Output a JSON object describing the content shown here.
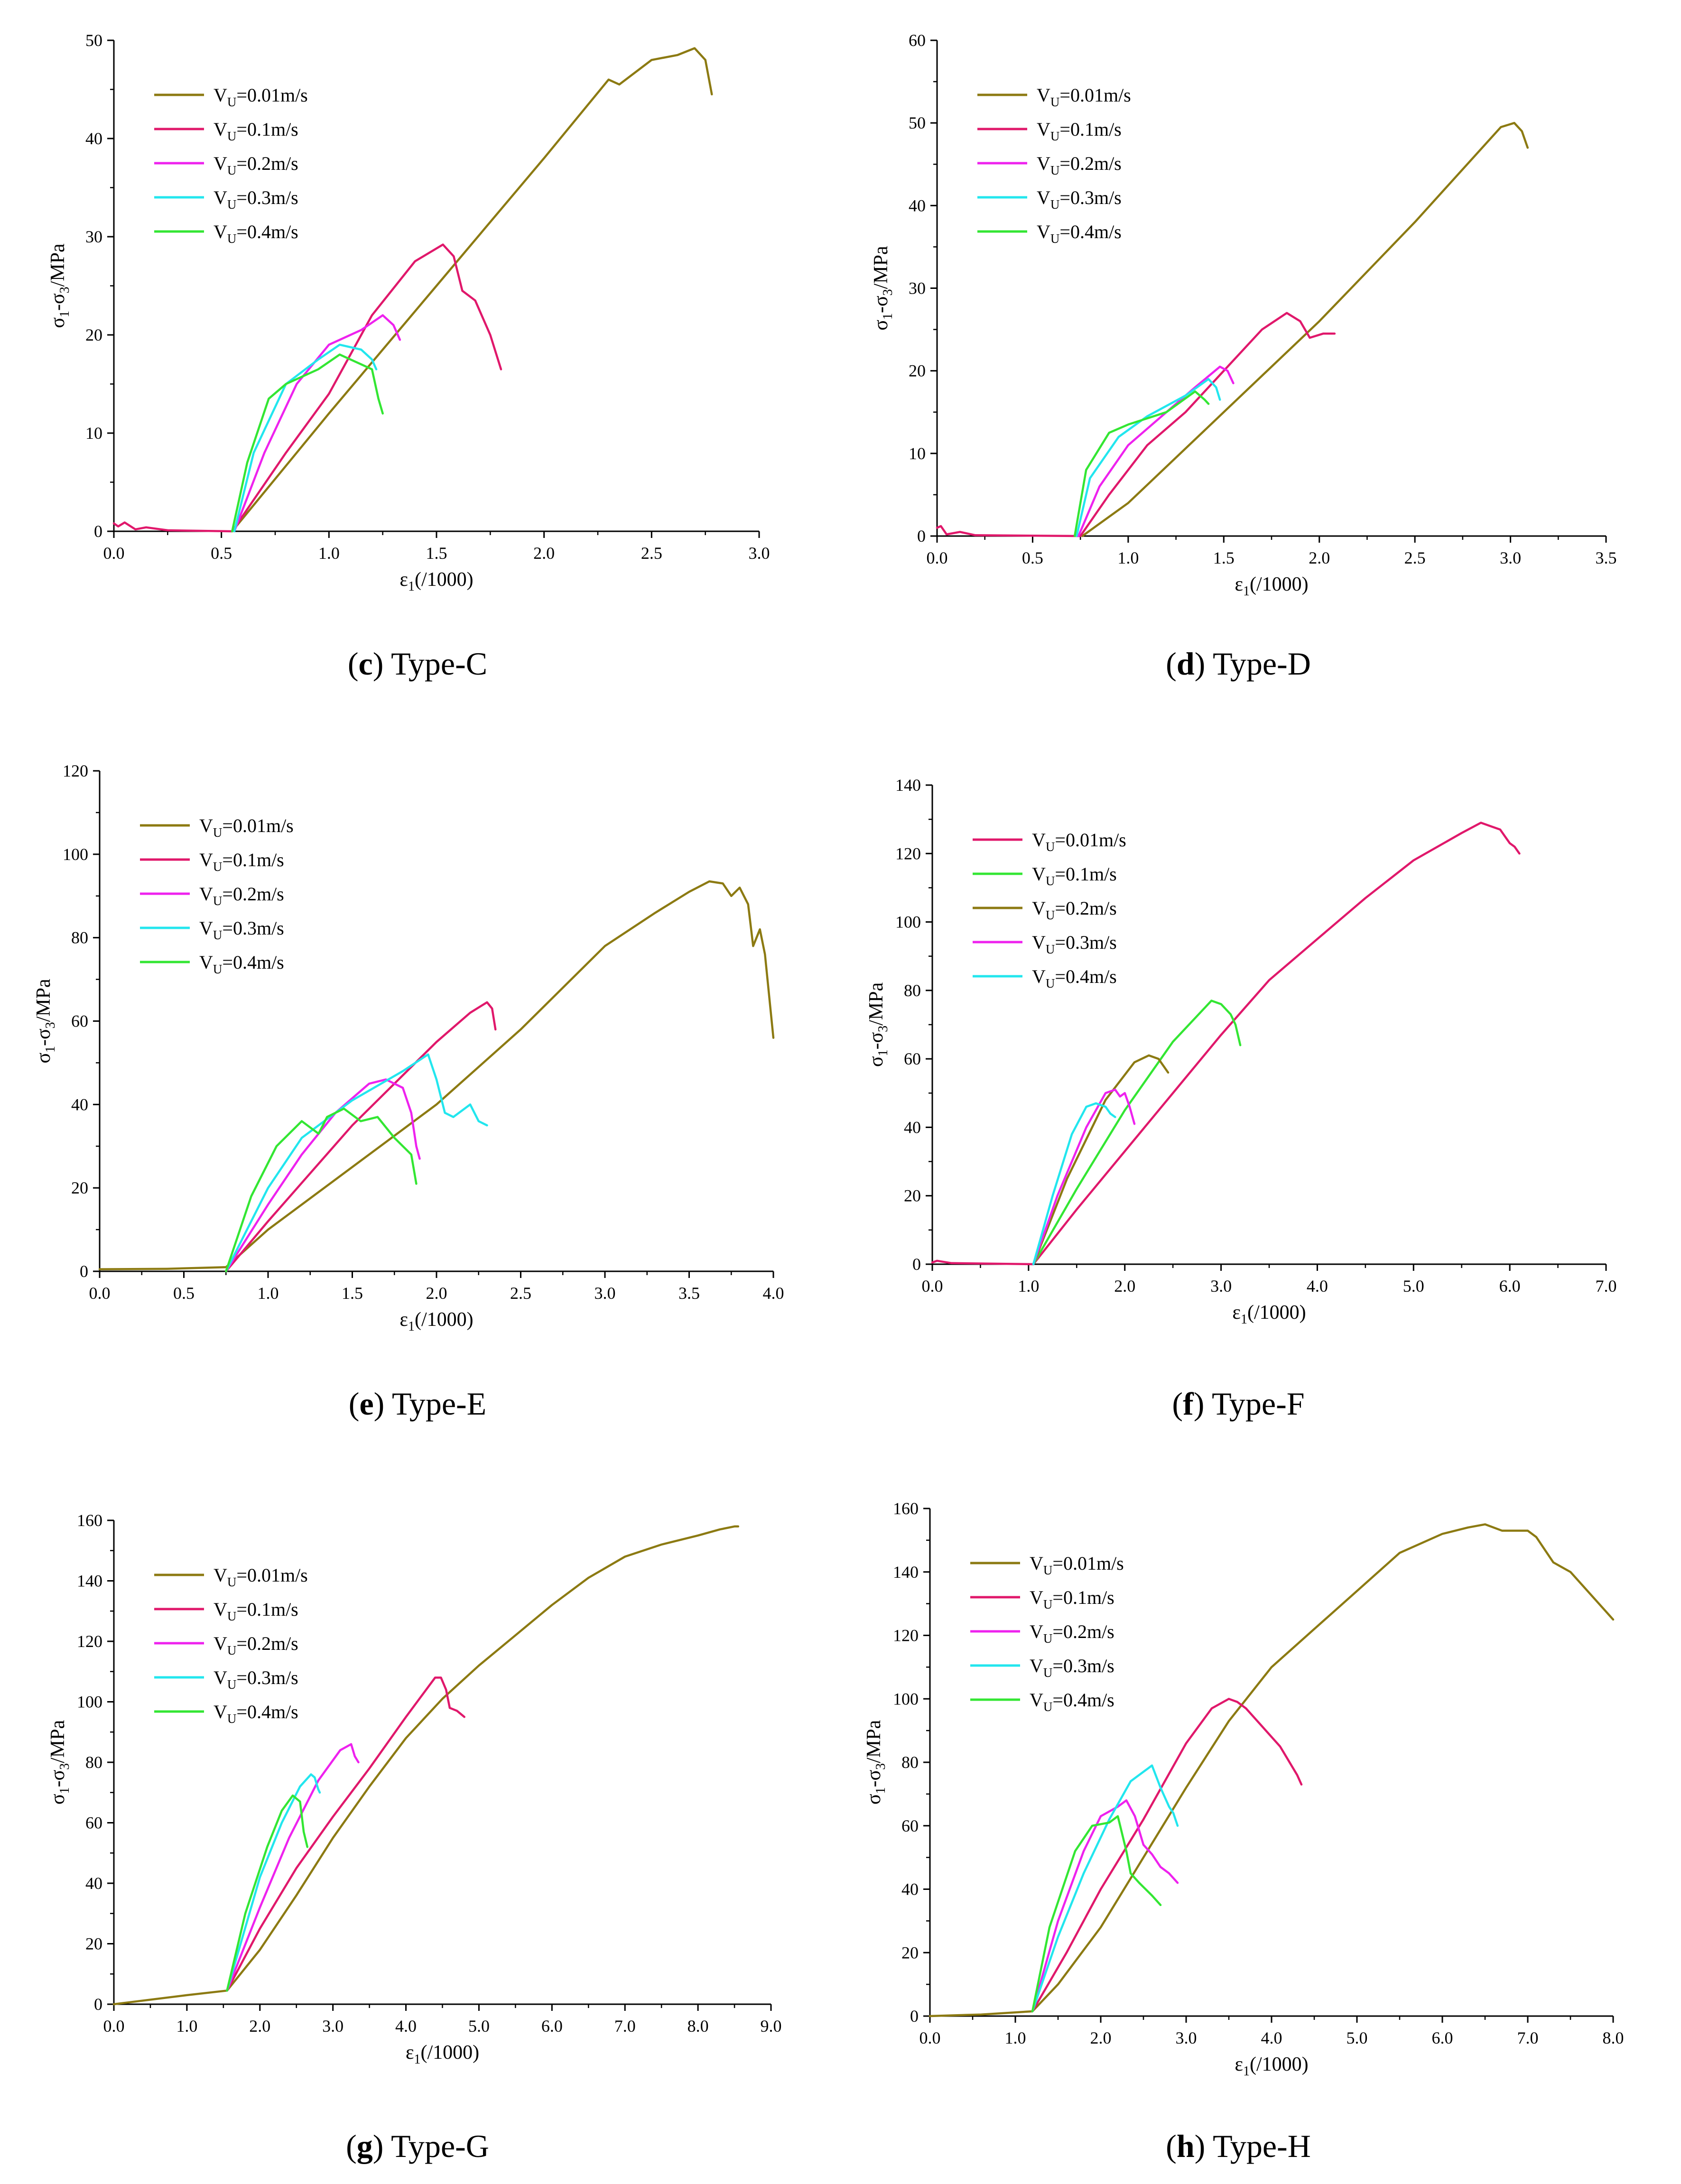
{
  "figure": {
    "ylabel_main": "σ",
    "ylabel_sub1": "1",
    "ylabel_mid": "-σ",
    "ylabel_sub3": "3",
    "ylabel_unit": "/MPa",
    "xlabel_main": "ε",
    "xlabel_sub": "1",
    "xlabel_unit": "(/1000)",
    "legend_prefix": "V",
    "legend_sub": "U"
  },
  "colors": {
    "olive": "#8c7a12",
    "crimson": "#e0186b",
    "magenta": "#ee22ee",
    "cyan": "#22e6ee",
    "green": "#33e633"
  },
  "chart_data": [
    {
      "type": "line",
      "caption_letter": "c",
      "caption_text": "Type-C",
      "xlabel": "ε1(/1000)",
      "ylabel": "σ1-σ3/MPa",
      "xlim": [
        0,
        3.0
      ],
      "ylim": [
        0,
        50
      ],
      "xticks": [
        "0.0",
        "0.5",
        "1.0",
        "1.5",
        "2.0",
        "2.5",
        "3.0"
      ],
      "yticks": [
        "0",
        "10",
        "20",
        "30",
        "40",
        "50"
      ],
      "series": [
        {
          "name": "=0.01m/s",
          "color": "olive",
          "x": [
            0.55,
            1.0,
            1.5,
            2.0,
            2.3,
            2.35,
            2.5,
            2.62,
            2.7,
            2.75,
            2.78
          ],
          "y": [
            0,
            12,
            25,
            38,
            46,
            45.5,
            48,
            48.5,
            49.2,
            48,
            44.5
          ]
        },
        {
          "name": "=0.1m/s",
          "color": "crimson",
          "x": [
            0.0,
            0.02,
            0.05,
            0.1,
            0.15,
            0.25,
            0.55,
            0.8,
            1.0,
            1.2,
            1.4,
            1.53,
            1.58,
            1.62,
            1.68,
            1.75,
            1.8
          ],
          "y": [
            0.8,
            0.5,
            0.9,
            0.2,
            0.4,
            0.1,
            0,
            8,
            14,
            22,
            27.5,
            29.2,
            28,
            24.5,
            23.5,
            20,
            16.5
          ]
        },
        {
          "name": "=0.2m/s",
          "color": "magenta",
          "x": [
            0.56,
            0.7,
            0.85,
            1.0,
            1.15,
            1.25,
            1.3,
            1.33
          ],
          "y": [
            0,
            8,
            15,
            19,
            20.5,
            22,
            21,
            19.5
          ]
        },
        {
          "name": "=0.3m/s",
          "color": "cyan",
          "x": [
            0.56,
            0.65,
            0.8,
            0.95,
            1.05,
            1.15,
            1.2,
            1.22
          ],
          "y": [
            0,
            8,
            15,
            17.5,
            19,
            18.5,
            17.5,
            16.5
          ]
        },
        {
          "name": "=0.4m/s",
          "color": "green",
          "x": [
            0.55,
            0.62,
            0.72,
            0.8,
            0.95,
            1.05,
            1.15,
            1.2,
            1.23,
            1.25
          ],
          "y": [
            0,
            7,
            13.5,
            15,
            16.5,
            18,
            17,
            16.5,
            13.5,
            12
          ]
        }
      ]
    },
    {
      "type": "line",
      "caption_letter": "d",
      "caption_text": "Type-D",
      "xlabel": "ε1(/1000)",
      "ylabel": "σ1-σ3/MPa",
      "xlim": [
        0,
        3.5
      ],
      "ylim": [
        0,
        60
      ],
      "xticks": [
        "0.0",
        "0.5",
        "1.0",
        "1.5",
        "2.0",
        "2.5",
        "3.0",
        "3.5"
      ],
      "yticks": [
        "0",
        "10",
        "20",
        "30",
        "40",
        "50",
        "60"
      ],
      "series": [
        {
          "name": "=0.01m/s",
          "color": "olive",
          "x": [
            0.76,
            1.0,
            1.5,
            2.0,
            2.5,
            2.95,
            3.02,
            3.06,
            3.09
          ],
          "y": [
            0,
            4,
            15,
            26,
            38,
            49.5,
            50,
            49,
            47
          ]
        },
        {
          "name": "=0.1m/s",
          "color": "crimson",
          "x": [
            0.0,
            0.02,
            0.05,
            0.12,
            0.2,
            0.75,
            0.9,
            1.1,
            1.3,
            1.5,
            1.7,
            1.83,
            1.9,
            1.95,
            2.02,
            2.08
          ],
          "y": [
            1.0,
            1.2,
            0.2,
            0.5,
            0.1,
            0,
            5,
            11,
            15,
            20,
            25,
            27,
            26,
            24,
            24.5,
            24.5
          ]
        },
        {
          "name": "=0.2m/s",
          "color": "magenta",
          "x": [
            0.74,
            0.85,
            1.0,
            1.2,
            1.35,
            1.48,
            1.52,
            1.55
          ],
          "y": [
            0,
            6,
            11,
            15,
            18,
            20.5,
            20,
            18.5
          ]
        },
        {
          "name": "=0.3m/s",
          "color": "cyan",
          "x": [
            0.73,
            0.8,
            0.95,
            1.1,
            1.3,
            1.42,
            1.46,
            1.48
          ],
          "y": [
            0,
            7,
            12,
            14.5,
            17,
            19,
            18,
            16.5
          ]
        },
        {
          "name": "=0.4m/s",
          "color": "green",
          "x": [
            0.72,
            0.78,
            0.9,
            1.0,
            1.2,
            1.35,
            1.4,
            1.42
          ],
          "y": [
            0,
            8,
            12.5,
            13.5,
            15,
            17.5,
            16.5,
            16
          ]
        }
      ]
    },
    {
      "type": "line",
      "caption_letter": "e",
      "caption_text": "Type-E",
      "xlabel": "ε1(/1000)",
      "ylabel": "σ1-σ3/MPa",
      "xlim": [
        0,
        4.0
      ],
      "ylim": [
        0,
        120
      ],
      "xticks": [
        "0.0",
        "0.5",
        "1.0",
        "1.5",
        "2.0",
        "2.5",
        "3.0",
        "3.5",
        "4.0"
      ],
      "yticks": [
        "0",
        "20",
        "40",
        "60",
        "80",
        "100",
        "120"
      ],
      "series": [
        {
          "name": "=0.01m/s",
          "color": "olive",
          "x": [
            0.0,
            0.4,
            0.75,
            1.0,
            1.5,
            2.0,
            2.5,
            3.0,
            3.3,
            3.5,
            3.62,
            3.7,
            3.75,
            3.8,
            3.85,
            3.88,
            3.92,
            3.95,
            4.0
          ],
          "y": [
            0.5,
            0.6,
            1,
            10,
            25,
            40,
            58,
            78,
            86,
            91,
            93.5,
            93,
            90,
            92,
            88,
            78,
            82,
            76,
            56
          ]
        },
        {
          "name": "=0.1m/s",
          "color": "crimson",
          "x": [
            0.75,
            1.0,
            1.5,
            2.0,
            2.2,
            2.3,
            2.33,
            2.35
          ],
          "y": [
            0,
            12,
            35,
            55,
            62,
            64.5,
            63,
            58
          ]
        },
        {
          "name": "=0.2m/s",
          "color": "magenta",
          "x": [
            0.75,
            1.0,
            1.2,
            1.4,
            1.6,
            1.7,
            1.8,
            1.85,
            1.88,
            1.9
          ],
          "y": [
            0,
            16,
            28,
            38,
            45,
            46,
            44,
            38,
            30,
            27
          ]
        },
        {
          "name": "=0.3m/s",
          "color": "cyan",
          "x": [
            0.75,
            1.0,
            1.2,
            1.5,
            1.8,
            1.95,
            2.0,
            2.05,
            2.1,
            2.2,
            2.25,
            2.3
          ],
          "y": [
            0,
            20,
            32,
            41,
            48,
            52,
            46,
            38,
            37,
            40,
            36,
            35
          ]
        },
        {
          "name": "=0.4m/s",
          "color": "green",
          "x": [
            0.75,
            0.9,
            1.05,
            1.2,
            1.3,
            1.35,
            1.45,
            1.55,
            1.65,
            1.75,
            1.85,
            1.88
          ],
          "y": [
            0,
            18,
            30,
            36,
            33,
            37,
            39,
            36,
            37,
            32,
            28,
            21
          ]
        }
      ]
    },
    {
      "type": "line",
      "caption_letter": "f",
      "caption_text": "Type-F",
      "xlabel": "ε1(/1000)",
      "ylabel": "σ1-σ3/MPa",
      "xlim": [
        0,
        7.0
      ],
      "ylim": [
        0,
        140
      ],
      "xticks": [
        "0.0",
        "1.0",
        "2.0",
        "3.0",
        "4.0",
        "5.0",
        "6.0",
        "7.0"
      ],
      "yticks": [
        "0",
        "20",
        "40",
        "60",
        "80",
        "100",
        "120",
        "140"
      ],
      "series": [
        {
          "name": "=0.01m/s",
          "color": "crimson",
          "x": [
            0.0,
            0.05,
            0.2,
            1.05,
            1.5,
            2.0,
            2.5,
            3.0,
            3.5,
            4.0,
            4.5,
            5.0,
            5.5,
            5.7,
            5.8,
            5.9,
            6.0,
            6.05,
            6.1
          ],
          "y": [
            0.5,
            1,
            0.3,
            0,
            16,
            33,
            50,
            67,
            83,
            95,
            107,
            118,
            126,
            129,
            128,
            127,
            123,
            122,
            120
          ]
        },
        {
          "name": "=0.1m/s",
          "color": "green",
          "x": [
            1.05,
            1.5,
            2.0,
            2.5,
            2.9,
            3.0,
            3.1,
            3.15,
            3.2
          ],
          "y": [
            0,
            22,
            45,
            65,
            77,
            76,
            73,
            70,
            64
          ]
        },
        {
          "name": "=0.2m/s",
          "color": "olive",
          "x": [
            1.05,
            1.4,
            1.8,
            2.1,
            2.25,
            2.35,
            2.4,
            2.45
          ],
          "y": [
            0,
            25,
            48,
            59,
            61,
            60,
            58,
            56
          ]
        },
        {
          "name": "=0.3m/s",
          "color": "magenta",
          "x": [
            1.05,
            1.3,
            1.6,
            1.8,
            1.9,
            1.95,
            2.0,
            2.05,
            2.1
          ],
          "y": [
            0,
            20,
            40,
            50,
            51,
            49,
            50,
            46,
            41
          ]
        },
        {
          "name": "=0.4m/s",
          "color": "cyan",
          "x": [
            1.05,
            1.25,
            1.45,
            1.6,
            1.7,
            1.8,
            1.85,
            1.9
          ],
          "y": [
            0,
            20,
            38,
            46,
            47,
            46,
            44,
            43
          ]
        }
      ]
    },
    {
      "type": "line",
      "caption_letter": "g",
      "caption_text": "Type-G",
      "xlabel": "ε1(/1000)",
      "ylabel": "σ1-σ3/MPa",
      "xlim": [
        0,
        9.0
      ],
      "ylim": [
        0,
        160
      ],
      "xticks": [
        "0.0",
        "1.0",
        "2.0",
        "3.0",
        "4.0",
        "5.0",
        "6.0",
        "7.0",
        "8.0",
        "9.0"
      ],
      "yticks": [
        "0",
        "20",
        "40",
        "60",
        "80",
        "100",
        "120",
        "140",
        "160"
      ],
      "series": [
        {
          "name": "=0.01m/s",
          "color": "olive",
          "x": [
            0.0,
            1.0,
            1.55,
            2.0,
            2.5,
            3.0,
            3.5,
            4.0,
            4.5,
            5.0,
            5.5,
            6.0,
            6.5,
            7.0,
            7.5,
            8.0,
            8.3,
            8.5,
            8.55
          ],
          "y": [
            0,
            3,
            4.5,
            18,
            36,
            55,
            72,
            88,
            101,
            112,
            122,
            132,
            141,
            148,
            152,
            155,
            157,
            158,
            158
          ]
        },
        {
          "name": "=0.1m/s",
          "color": "crimson",
          "x": [
            1.55,
            2.0,
            2.5,
            3.0,
            3.5,
            4.0,
            4.4,
            4.48,
            4.55,
            4.6,
            4.7,
            4.8
          ],
          "y": [
            4.5,
            25,
            45,
            62,
            78,
            95,
            108,
            108,
            104,
            98,
            97,
            95
          ]
        },
        {
          "name": "=0.2m/s",
          "color": "magenta",
          "x": [
            1.55,
            2.0,
            2.4,
            2.8,
            3.1,
            3.25,
            3.3,
            3.35
          ],
          "y": [
            4.5,
            32,
            55,
            74,
            84,
            86,
            82,
            80
          ]
        },
        {
          "name": "=0.3m/s",
          "color": "cyan",
          "x": [
            1.55,
            2.0,
            2.3,
            2.55,
            2.7,
            2.75,
            2.8,
            2.82
          ],
          "y": [
            4.5,
            42,
            60,
            72,
            76,
            75,
            71,
            70
          ]
        },
        {
          "name": "=0.4m/s",
          "color": "green",
          "x": [
            1.55,
            1.8,
            2.1,
            2.3,
            2.45,
            2.55,
            2.6,
            2.65
          ],
          "y": [
            4.5,
            30,
            52,
            64,
            69,
            67,
            57,
            52
          ]
        }
      ]
    },
    {
      "type": "line",
      "caption_letter": "h",
      "caption_text": "Type-H",
      "xlabel": "ε1(/1000)",
      "ylabel": "σ1-σ3/MPa",
      "xlim": [
        0,
        8.0
      ],
      "ylim": [
        0,
        160
      ],
      "xticks": [
        "0.0",
        "1.0",
        "2.0",
        "3.0",
        "4.0",
        "5.0",
        "6.0",
        "7.0",
        "8.0"
      ],
      "yticks": [
        "0",
        "20",
        "40",
        "60",
        "80",
        "100",
        "120",
        "140",
        "160"
      ],
      "series": [
        {
          "name": "=0.01m/s",
          "color": "olive",
          "x": [
            0.0,
            0.6,
            1.2,
            1.5,
            2.0,
            2.5,
            3.0,
            3.5,
            4.0,
            4.5,
            5.0,
            5.5,
            6.0,
            6.3,
            6.5,
            6.7,
            7.0,
            7.1,
            7.3,
            7.5,
            7.7,
            7.9,
            8.0
          ],
          "y": [
            0,
            0.5,
            1.5,
            10,
            28,
            50,
            72,
            93,
            110,
            122,
            134,
            146,
            152,
            154,
            155,
            153,
            153,
            151,
            143,
            140,
            134,
            128,
            125
          ]
        },
        {
          "name": "=0.1m/s",
          "color": "crimson",
          "x": [
            1.2,
            1.6,
            2.0,
            2.5,
            3.0,
            3.3,
            3.5,
            3.6,
            3.7,
            3.9,
            4.1,
            4.3,
            4.35
          ],
          "y": [
            1.5,
            20,
            40,
            62,
            86,
            97,
            100,
            99,
            97,
            91,
            85,
            76,
            73
          ]
        },
        {
          "name": "=0.2m/s",
          "color": "magenta",
          "x": [
            1.2,
            1.5,
            1.8,
            2.0,
            2.2,
            2.3,
            2.4,
            2.5,
            2.6,
            2.7,
            2.8,
            2.9
          ],
          "y": [
            1.5,
            30,
            52,
            63,
            66,
            68,
            63,
            54,
            51,
            47,
            45,
            42
          ]
        },
        {
          "name": "=0.3m/s",
          "color": "cyan",
          "x": [
            1.2,
            1.5,
            1.8,
            2.1,
            2.35,
            2.55,
            2.6,
            2.7,
            2.8,
            2.85,
            2.9
          ],
          "y": [
            1.5,
            25,
            45,
            62,
            74,
            78,
            79,
            72,
            66,
            64,
            60
          ]
        },
        {
          "name": "=0.4m/s",
          "color": "green",
          "x": [
            1.2,
            1.4,
            1.7,
            1.9,
            2.1,
            2.2,
            2.3,
            2.35,
            2.45,
            2.6,
            2.7
          ],
          "y": [
            1.5,
            28,
            52,
            60,
            61,
            63,
            52,
            45,
            42,
            38,
            35
          ]
        }
      ]
    }
  ]
}
